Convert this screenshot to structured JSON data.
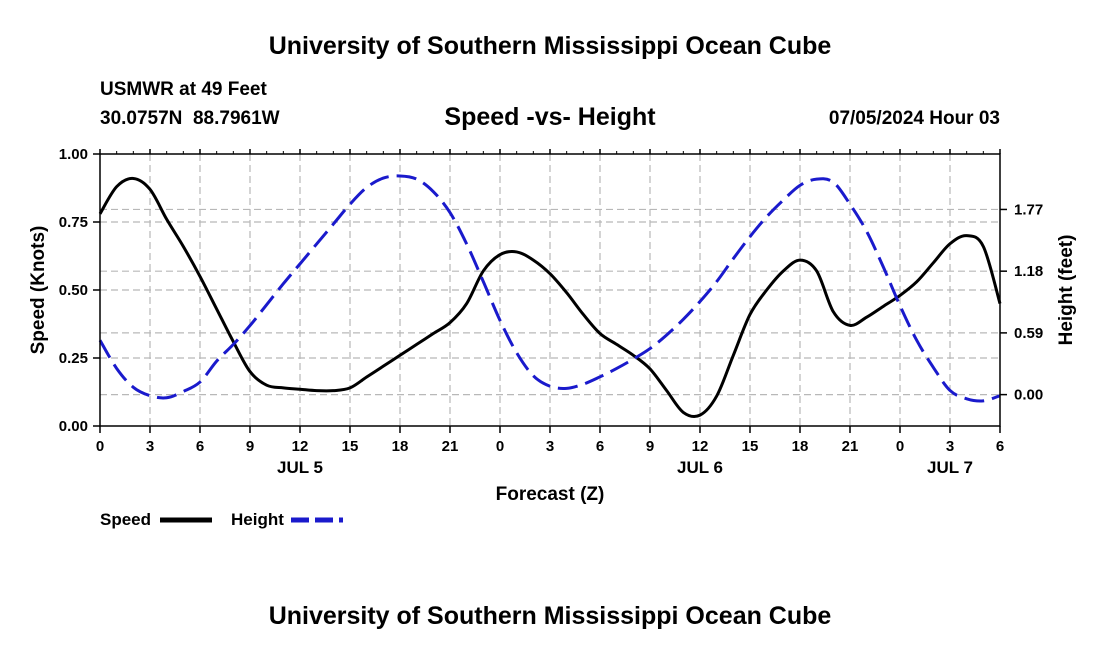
{
  "page": {
    "title_top": "University of Southern Mississippi Ocean Cube",
    "title_bottom": "University of Southern Mississippi Ocean Cube",
    "station_line1": "USMWR at 49 Feet",
    "station_line2": "30.0757N  88.7961W",
    "datetime": "07/05/2024 Hour 03"
  },
  "chart_data": {
    "type": "line",
    "title": "Speed -vs- Height",
    "xlabel": "Forecast (Z)",
    "ylabel_left": "Speed (Knots)",
    "ylabel_right": "Height (feet)",
    "x_range_hours": [
      0,
      54
    ],
    "x_tick_step_hours": 3,
    "x_tick_labels": [
      "0",
      "3",
      "6",
      "9",
      "12",
      "15",
      "18",
      "21",
      "0",
      "3",
      "6",
      "9",
      "12",
      "15",
      "18",
      "21",
      "0",
      "3",
      "6"
    ],
    "date_labels": [
      {
        "label": "JUL 5",
        "hour": 12
      },
      {
        "label": "JUL 6",
        "hour": 36
      },
      {
        "label": "JUL 7",
        "hour": 51
      }
    ],
    "y_left_range": [
      0,
      1
    ],
    "y_left_ticks": [
      "0.00",
      "0.25",
      "0.50",
      "0.75",
      "1.00"
    ],
    "y_right_range": [
      -0.3,
      2.3
    ],
    "y_right_ticks": [
      {
        "value": 0.0,
        "label": "0.00"
      },
      {
        "value": 0.59,
        "label": "0.59"
      },
      {
        "value": 1.18,
        "label": "1.18"
      },
      {
        "value": 1.77,
        "label": "1.77"
      }
    ],
    "grid": true,
    "legend_position": "bottom-left",
    "series": [
      {
        "name": "Speed",
        "axis": "left",
        "color": "#000000",
        "dash": "solid",
        "x": [
          0,
          1,
          2,
          3,
          4,
          5,
          6,
          7,
          8,
          9,
          10,
          11,
          12,
          13,
          14,
          15,
          16,
          17,
          18,
          19,
          20,
          21,
          22,
          23,
          24,
          25,
          26,
          27,
          28,
          29,
          30,
          31,
          32,
          33,
          34,
          35,
          36,
          37,
          38,
          39,
          40,
          41,
          42,
          43,
          44,
          45,
          46,
          47,
          48,
          49,
          50,
          51,
          52,
          53,
          54
        ],
        "values": [
          0.78,
          0.88,
          0.91,
          0.87,
          0.76,
          0.66,
          0.55,
          0.43,
          0.31,
          0.2,
          0.15,
          0.14,
          0.135,
          0.13,
          0.13,
          0.14,
          0.18,
          0.22,
          0.26,
          0.3,
          0.34,
          0.38,
          0.45,
          0.57,
          0.63,
          0.64,
          0.61,
          0.56,
          0.49,
          0.41,
          0.34,
          0.3,
          0.26,
          0.21,
          0.13,
          0.05,
          0.04,
          0.11,
          0.26,
          0.41,
          0.5,
          0.57,
          0.61,
          0.57,
          0.42,
          0.37,
          0.4,
          0.44,
          0.48,
          0.53,
          0.6,
          0.67,
          0.7,
          0.66,
          0.45
        ]
      },
      {
        "name": "Height",
        "axis": "right",
        "color": "#1a1acc",
        "dash": "dashed",
        "x": [
          0,
          1,
          2,
          3,
          4,
          5,
          6,
          7,
          8,
          9,
          10,
          11,
          12,
          13,
          14,
          15,
          16,
          17,
          18,
          19,
          20,
          21,
          22,
          23,
          24,
          25,
          26,
          27,
          28,
          29,
          30,
          31,
          32,
          33,
          34,
          35,
          36,
          37,
          38,
          39,
          40,
          41,
          42,
          43,
          44,
          45,
          46,
          47,
          48,
          49,
          50,
          51,
          52,
          53,
          54
        ],
        "values": [
          0.52,
          0.25,
          0.07,
          -0.01,
          -0.03,
          0.03,
          0.12,
          0.32,
          0.48,
          0.66,
          0.86,
          1.06,
          1.25,
          1.44,
          1.63,
          1.82,
          1.98,
          2.07,
          2.09,
          2.06,
          1.94,
          1.74,
          1.44,
          1.08,
          0.71,
          0.4,
          0.18,
          0.08,
          0.06,
          0.1,
          0.17,
          0.25,
          0.34,
          0.44,
          0.57,
          0.72,
          0.89,
          1.08,
          1.3,
          1.51,
          1.7,
          1.86,
          2.0,
          2.06,
          2.03,
          1.82,
          1.56,
          1.22,
          0.85,
          0.52,
          0.26,
          0.04,
          -0.04,
          -0.06,
          -0.01
        ]
      }
    ]
  }
}
